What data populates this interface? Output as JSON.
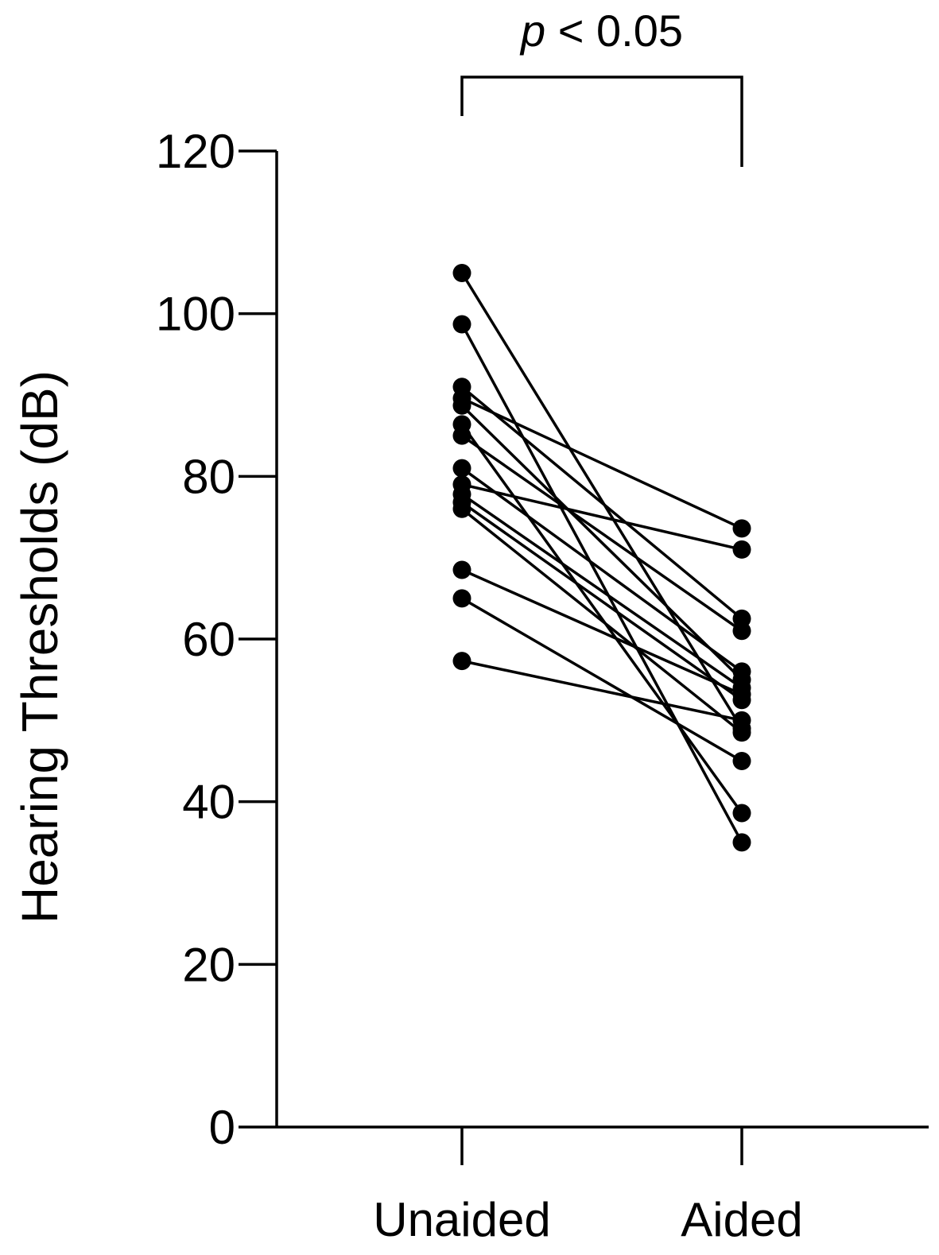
{
  "chart_data": {
    "type": "line",
    "title": "",
    "xlabel": "",
    "ylabel": "Hearing Thresholds (dB)",
    "categories": [
      "Unaided",
      "Aided"
    ],
    "ylim": [
      0,
      120
    ],
    "yticks": [
      0,
      20,
      40,
      60,
      80,
      100,
      120
    ],
    "grid": false,
    "legend": "none",
    "colors": {
      "line": "#000000",
      "marker": "#000000"
    },
    "significance": {
      "p_symbol": "p",
      "comparison": " < 0.05"
    },
    "pairs": [
      [
        105,
        49
      ],
      [
        98.7,
        35
      ],
      [
        91,
        62.5
      ],
      [
        89.6,
        73.6
      ],
      [
        88.7,
        55
      ],
      [
        86.4,
        38.6
      ],
      [
        85,
        61
      ],
      [
        81,
        56
      ],
      [
        79,
        71
      ],
      [
        77.8,
        54
      ],
      [
        76.8,
        52.5
      ],
      [
        76,
        48.5
      ],
      [
        68.5,
        53.2
      ],
      [
        65,
        45
      ],
      [
        57.3,
        50
      ]
    ]
  }
}
